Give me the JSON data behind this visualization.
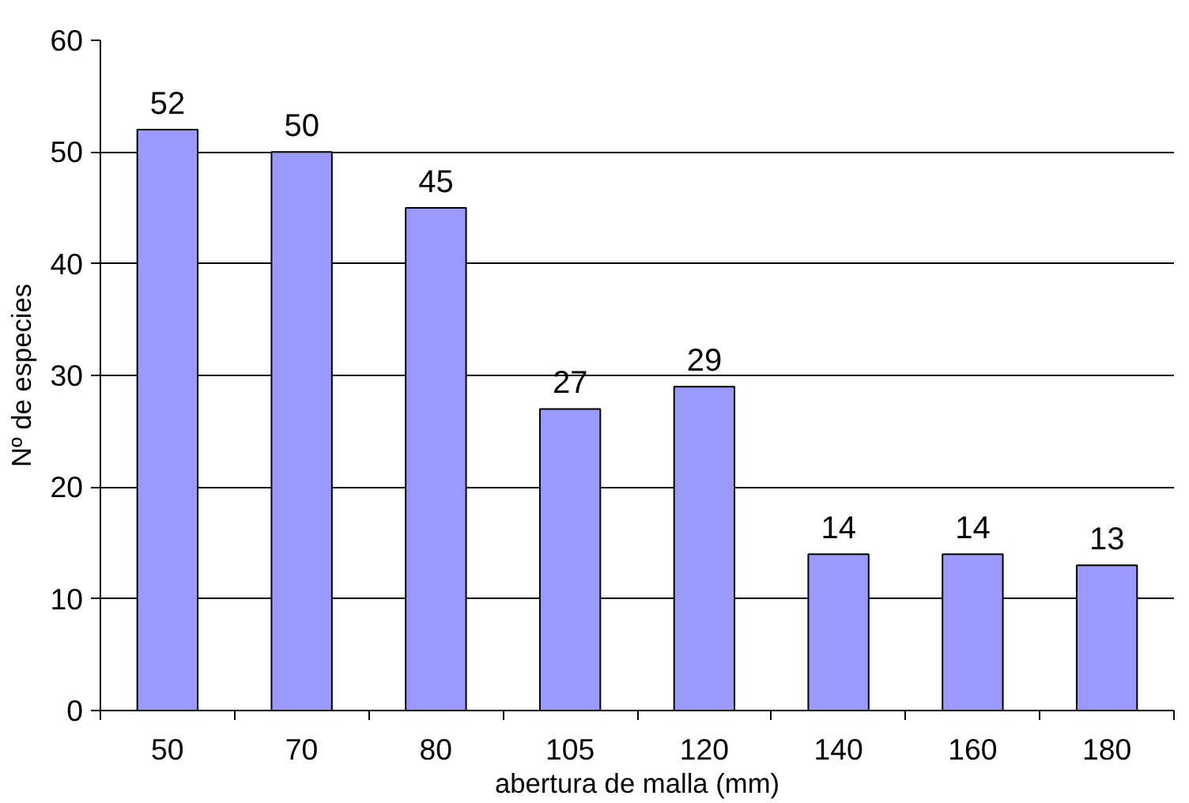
{
  "chart_data": {
    "type": "bar",
    "xlabel": "abertura de malla (mm)",
    "ylabel": "Nº de especies",
    "categories": [
      "50",
      "70",
      "80",
      "105",
      "120",
      "140",
      "160",
      "180"
    ],
    "values": [
      52,
      50,
      45,
      27,
      29,
      14,
      14,
      13
    ],
    "color": "#9999ff",
    "ylim": [
      0,
      60
    ],
    "yticks": [
      0,
      10,
      20,
      30,
      40,
      50,
      60
    ],
    "grid": "y",
    "data_labels": true
  }
}
